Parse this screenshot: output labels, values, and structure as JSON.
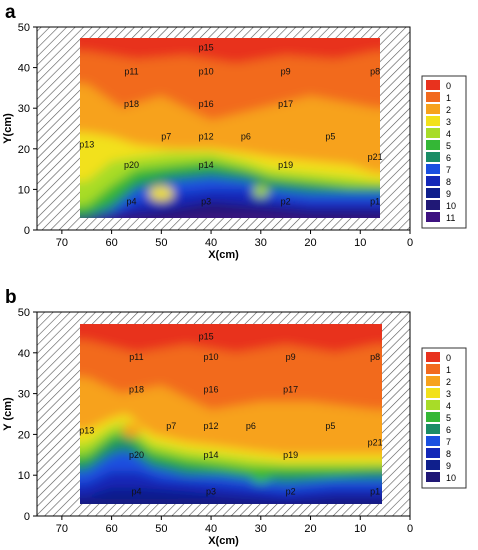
{
  "chart_data": [
    {
      "panel": "a",
      "type": "heatmap",
      "xlabel": "X(cm)",
      "ylabel": "Y(cm)",
      "xlim": [
        75,
        0
      ],
      "ylim": [
        0,
        50
      ],
      "xticks": [
        70,
        60,
        50,
        40,
        30,
        20,
        10,
        0
      ],
      "yticks": [
        0,
        10,
        20,
        30,
        40,
        50
      ],
      "legend_position": "right",
      "legend": [
        {
          "label": "0",
          "color": "#e8321e"
        },
        {
          "label": "1",
          "color": "#f26a1e"
        },
        {
          "label": "2",
          "color": "#f7a21c"
        },
        {
          "label": "3",
          "color": "#f2e11a"
        },
        {
          "label": "4",
          "color": "#a8dc28"
        },
        {
          "label": "5",
          "color": "#34b736"
        },
        {
          "label": "6",
          "color": "#1b8c66"
        },
        {
          "label": "7",
          "color": "#1a4fe0"
        },
        {
          "label": "8",
          "color": "#1428b8"
        },
        {
          "label": "9",
          "color": "#0f1f8c"
        },
        {
          "label": "10",
          "color": "#201876"
        },
        {
          "label": "11",
          "color": "#3d1280"
        }
      ],
      "points": [
        {
          "label": "p15",
          "x": 41,
          "y": 45
        },
        {
          "label": "p11",
          "x": 56,
          "y": 39
        },
        {
          "label": "p10",
          "x": 41,
          "y": 39
        },
        {
          "label": "p9",
          "x": 25,
          "y": 39
        },
        {
          "label": "p8",
          "x": 7,
          "y": 39
        },
        {
          "label": "p18",
          "x": 56,
          "y": 31
        },
        {
          "label": "p16",
          "x": 41,
          "y": 31
        },
        {
          "label": "p17",
          "x": 25,
          "y": 31
        },
        {
          "label": "p13",
          "x": 65,
          "y": 21
        },
        {
          "label": "p7",
          "x": 49,
          "y": 23
        },
        {
          "label": "p12",
          "x": 41,
          "y": 23
        },
        {
          "label": "p6",
          "x": 33,
          "y": 23
        },
        {
          "label": "p5",
          "x": 16,
          "y": 23
        },
        {
          "label": "p21",
          "x": 7,
          "y": 18
        },
        {
          "label": "p20",
          "x": 56,
          "y": 16
        },
        {
          "label": "p14",
          "x": 41,
          "y": 16
        },
        {
          "label": "p19",
          "x": 25,
          "y": 16
        },
        {
          "label": "p4",
          "x": 56,
          "y": 7
        },
        {
          "label": "p3",
          "x": 41,
          "y": 7
        },
        {
          "label": "p2",
          "x": 25,
          "y": 7
        },
        {
          "label": "p1",
          "x": 7,
          "y": 7
        }
      ]
    },
    {
      "panel": "b",
      "type": "heatmap",
      "xlabel": "X(cm)",
      "ylabel": "Y (cm)",
      "xlim": [
        75,
        0
      ],
      "ylim": [
        0,
        50
      ],
      "xticks": [
        70,
        60,
        50,
        40,
        30,
        20,
        10,
        0
      ],
      "yticks": [
        0,
        10,
        20,
        30,
        40,
        50
      ],
      "legend_position": "right",
      "legend": [
        {
          "label": "0",
          "color": "#e8321e"
        },
        {
          "label": "1",
          "color": "#f26a1e"
        },
        {
          "label": "2",
          "color": "#f7a21c"
        },
        {
          "label": "3",
          "color": "#f2e11a"
        },
        {
          "label": "4",
          "color": "#a8dc28"
        },
        {
          "label": "5",
          "color": "#34b736"
        },
        {
          "label": "6",
          "color": "#1b8c66"
        },
        {
          "label": "7",
          "color": "#1a4fe0"
        },
        {
          "label": "8",
          "color": "#1428b8"
        },
        {
          "label": "9",
          "color": "#0f1f8c"
        },
        {
          "label": "10",
          "color": "#201876"
        }
      ],
      "points": [
        {
          "label": "p15",
          "x": 41,
          "y": 44
        },
        {
          "label": "p11",
          "x": 55,
          "y": 39
        },
        {
          "label": "p10",
          "x": 40,
          "y": 39
        },
        {
          "label": "p9",
          "x": 24,
          "y": 39
        },
        {
          "label": "p8",
          "x": 7,
          "y": 39
        },
        {
          "label": "p18",
          "x": 55,
          "y": 31
        },
        {
          "label": "p16",
          "x": 40,
          "y": 31
        },
        {
          "label": "p17",
          "x": 24,
          "y": 31
        },
        {
          "label": "p13",
          "x": 65,
          "y": 21
        },
        {
          "label": "p7",
          "x": 48,
          "y": 22
        },
        {
          "label": "p12",
          "x": 40,
          "y": 22
        },
        {
          "label": "p6",
          "x": 32,
          "y": 22
        },
        {
          "label": "p5",
          "x": 16,
          "y": 22
        },
        {
          "label": "p21",
          "x": 7,
          "y": 18
        },
        {
          "label": "p20",
          "x": 55,
          "y": 15
        },
        {
          "label": "p14",
          "x": 40,
          "y": 15
        },
        {
          "label": "p19",
          "x": 24,
          "y": 15
        },
        {
          "label": "p4",
          "x": 55,
          "y": 6
        },
        {
          "label": "p3",
          "x": 40,
          "y": 6
        },
        {
          "label": "p2",
          "x": 24,
          "y": 6
        },
        {
          "label": "p1",
          "x": 7,
          "y": 6
        }
      ]
    }
  ]
}
